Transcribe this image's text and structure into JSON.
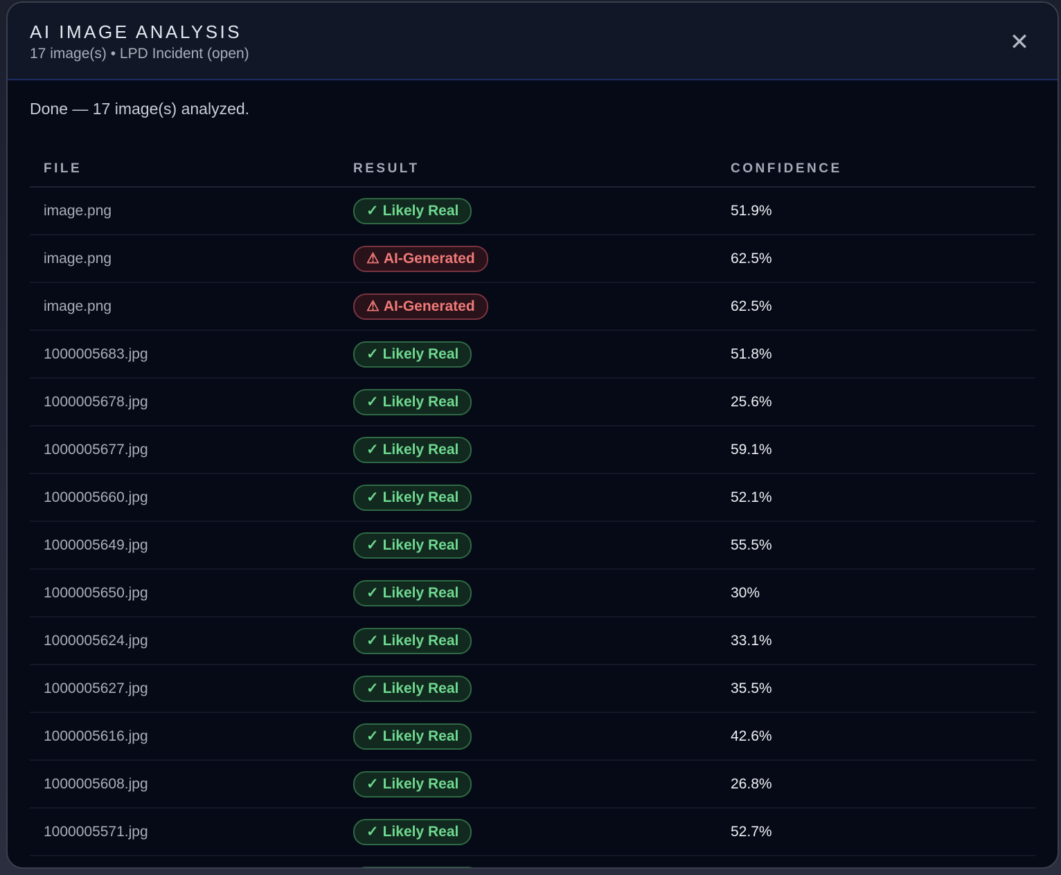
{
  "header": {
    "title": "AI IMAGE ANALYSIS",
    "subtitle": "17 image(s) • LPD Incident (open)",
    "close_icon": "close-icon"
  },
  "status": "Done — 17 image(s) analyzed.",
  "table": {
    "columns": [
      "FILE",
      "RESULT",
      "CONFIDENCE"
    ],
    "rows": [
      {
        "file": "image.png",
        "result": "Likely Real",
        "type": "real",
        "confidence": "51.9%"
      },
      {
        "file": "image.png",
        "result": "AI-Generated",
        "type": "ai",
        "confidence": "62.5%"
      },
      {
        "file": "image.png",
        "result": "AI-Generated",
        "type": "ai",
        "confidence": "62.5%"
      },
      {
        "file": "1000005683.jpg",
        "result": "Likely Real",
        "type": "real",
        "confidence": "51.8%"
      },
      {
        "file": "1000005678.jpg",
        "result": "Likely Real",
        "type": "real",
        "confidence": "25.6%"
      },
      {
        "file": "1000005677.jpg",
        "result": "Likely Real",
        "type": "real",
        "confidence": "59.1%"
      },
      {
        "file": "1000005660.jpg",
        "result": "Likely Real",
        "type": "real",
        "confidence": "52.1%"
      },
      {
        "file": "1000005649.jpg",
        "result": "Likely Real",
        "type": "real",
        "confidence": "55.5%"
      },
      {
        "file": "1000005650.jpg",
        "result": "Likely Real",
        "type": "real",
        "confidence": "30%"
      },
      {
        "file": "1000005624.jpg",
        "result": "Likely Real",
        "type": "real",
        "confidence": "33.1%"
      },
      {
        "file": "1000005627.jpg",
        "result": "Likely Real",
        "type": "real",
        "confidence": "35.5%"
      },
      {
        "file": "1000005616.jpg",
        "result": "Likely Real",
        "type": "real",
        "confidence": "42.6%"
      },
      {
        "file": "1000005608.jpg",
        "result": "Likely Real",
        "type": "real",
        "confidence": "26.8%"
      },
      {
        "file": "1000005571.jpg",
        "result": "Likely Real",
        "type": "real",
        "confidence": "52.7%"
      }
    ]
  },
  "colors": {
    "real": "#6fd88f",
    "ai": "#ef7a78",
    "accent": "#1f2c66"
  }
}
